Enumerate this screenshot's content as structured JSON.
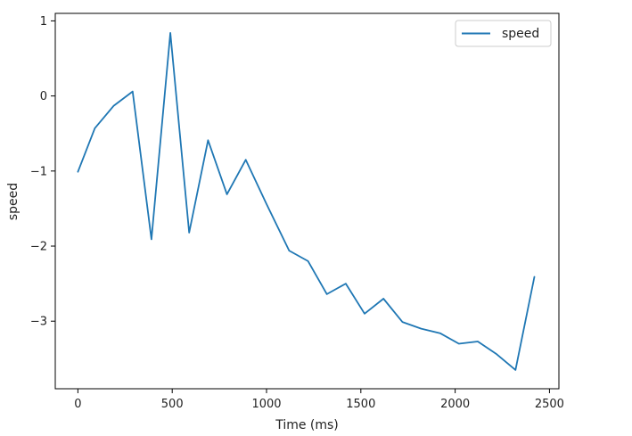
{
  "chart_data": {
    "type": "line",
    "xlabel": "Time (ms)",
    "ylabel": "speed",
    "xlim": [
      -120,
      2550
    ],
    "ylim": [
      -3.9,
      1.1
    ],
    "xticks": [
      0,
      500,
      1000,
      1500,
      2000,
      2500
    ],
    "xtick_labels": [
      "0",
      "500",
      "1000",
      "1500",
      "2000",
      "2500"
    ],
    "yticks": [
      1,
      0,
      -1,
      -2,
      -3
    ],
    "ytick_labels": [
      "1",
      "0",
      "−1",
      "−2",
      "−3"
    ],
    "grid": false,
    "legend": {
      "position": "top-right",
      "entries": [
        "speed"
      ]
    },
    "series": [
      {
        "name": "speed",
        "color": "#1f77b4",
        "x": [
          0,
          90,
          190,
          290,
          390,
          490,
          590,
          690,
          790,
          890,
          1000,
          1120,
          1220,
          1320,
          1420,
          1520,
          1620,
          1720,
          1820,
          1920,
          2020,
          2120,
          2220,
          2320,
          2420
        ],
        "y": [
          -1.01,
          -0.43,
          -0.13,
          0.06,
          -1.91,
          0.84,
          -1.82,
          -0.59,
          -1.31,
          -0.85,
          -1.44,
          -2.06,
          -2.2,
          -2.64,
          -2.5,
          -2.9,
          -2.7,
          -3.01,
          -3.1,
          -3.16,
          -3.3,
          -3.27,
          -3.44,
          -3.65,
          -2.41
        ]
      }
    ]
  }
}
